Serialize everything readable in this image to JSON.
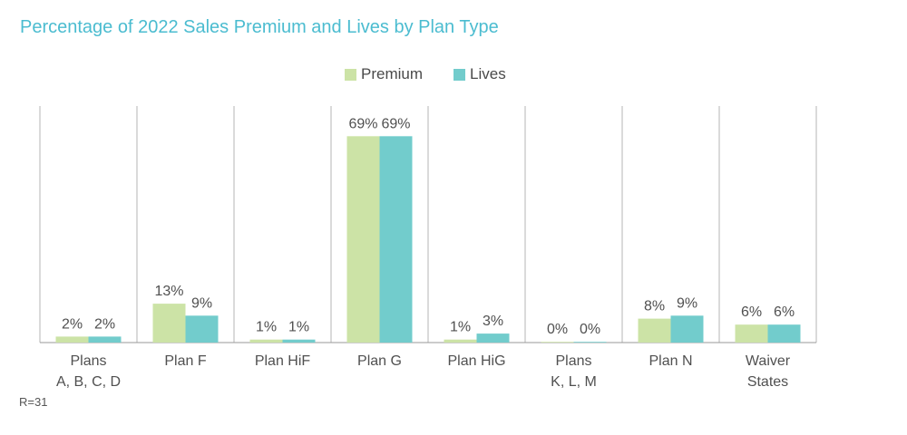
{
  "chart_data": {
    "type": "bar",
    "title": "Percentage of 2022 Sales Premium and Lives by Plan Type",
    "categories": [
      [
        "Plans",
        "A, B, C, D"
      ],
      [
        "Plan F"
      ],
      [
        "Plan HiF"
      ],
      [
        "Plan G"
      ],
      [
        "Plan HiG"
      ],
      [
        "Plans",
        "K, L, M"
      ],
      [
        "Plan N"
      ],
      [
        "Waiver",
        "States"
      ]
    ],
    "series": [
      {
        "name": "Premium",
        "color": "#cce3a6",
        "values": [
          2,
          13,
          1,
          69,
          1,
          0,
          8,
          6
        ],
        "labels": [
          "2%",
          "13%",
          "1%",
          "69%",
          "1%",
          "0%",
          "8%",
          "6%"
        ]
      },
      {
        "name": "Lives",
        "color": "#72cccc",
        "values": [
          2,
          9,
          1,
          69,
          3,
          0,
          9,
          6
        ],
        "labels": [
          "2%",
          "9%",
          "1%",
          "69%",
          "3%",
          "0%",
          "9%",
          "6%"
        ]
      }
    ],
    "ylim": [
      0,
      70
    ],
    "grid": false,
    "legend_position": "top-center"
  },
  "footnote": "R=31"
}
